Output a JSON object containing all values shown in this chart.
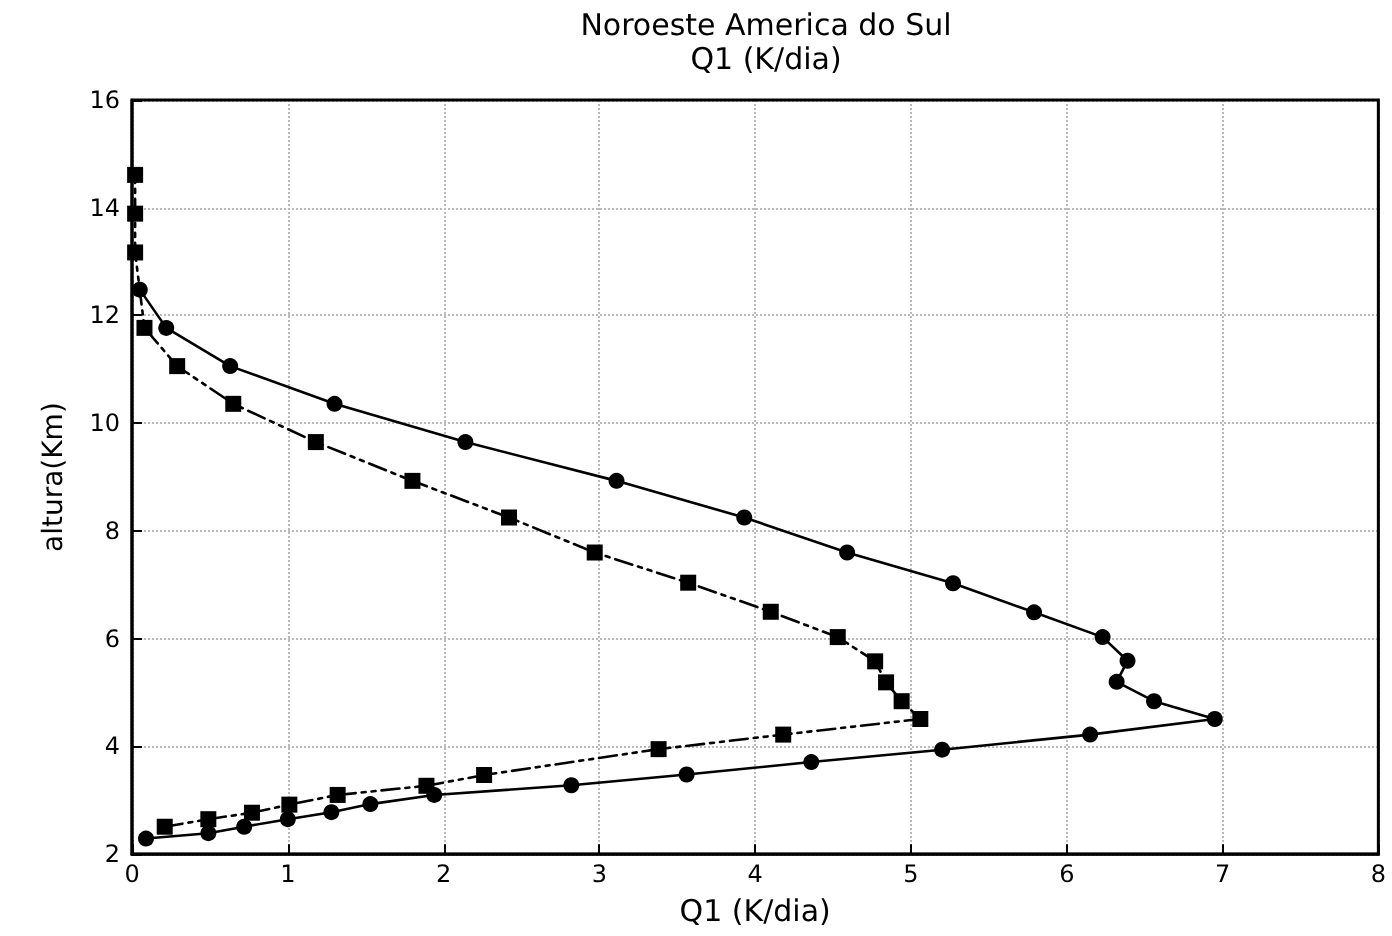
{
  "chart_data": {
    "type": "line",
    "title": "Noroeste America do Sul",
    "subtitle": "Q1 (K/dia)",
    "xlabel": "Q1 (K/dia)",
    "ylabel": "altura(Km)",
    "xlim": [
      0,
      8
    ],
    "xticks": [
      0,
      1,
      2,
      3,
      4,
      5,
      6,
      7,
      8
    ],
    "ylim": [
      2,
      16
    ],
    "yticks": [
      2,
      4,
      6,
      8,
      10,
      12,
      14,
      16
    ],
    "grid": true,
    "series": [
      {
        "color": "#000000",
        "marker": "circle",
        "line_style": "solid",
        "x": [
          0.09,
          0.49,
          0.72,
          1.0,
          1.28,
          1.53,
          1.94,
          2.82,
          3.56,
          4.36,
          5.2,
          6.15,
          6.95,
          6.56,
          6.32,
          6.39,
          6.23,
          5.79,
          5.27,
          4.59,
          3.93,
          3.11,
          2.14,
          1.3,
          0.63,
          0.22,
          0.05
        ],
        "values": [
          2.29,
          2.39,
          2.51,
          2.65,
          2.78,
          2.93,
          3.1,
          3.28,
          3.48,
          3.71,
          3.94,
          4.22,
          4.51,
          4.84,
          5.2,
          5.59,
          6.03,
          6.49,
          7.03,
          7.6,
          8.25,
          8.93,
          9.65,
          10.36,
          11.06,
          11.77,
          12.48
        ]
      },
      {
        "color": "#000000",
        "marker": "square",
        "line_style": "dashed",
        "x": [
          0.21,
          0.49,
          0.77,
          1.01,
          1.32,
          1.89,
          2.26,
          3.38,
          4.18,
          5.06,
          4.94,
          4.84,
          4.77,
          4.53,
          4.1,
          3.57,
          2.97,
          2.42,
          1.8,
          1.18,
          0.65,
          0.29,
          0.08,
          0.02,
          0.02,
          0.02
        ],
        "values": [
          2.51,
          2.65,
          2.77,
          2.92,
          3.1,
          3.27,
          3.47,
          3.95,
          4.22,
          4.51,
          4.84,
          5.19,
          5.58,
          6.03,
          6.5,
          7.04,
          7.6,
          8.25,
          8.93,
          9.65,
          10.36,
          11.06,
          11.77,
          13.17,
          13.89,
          14.61
        ]
      }
    ]
  }
}
